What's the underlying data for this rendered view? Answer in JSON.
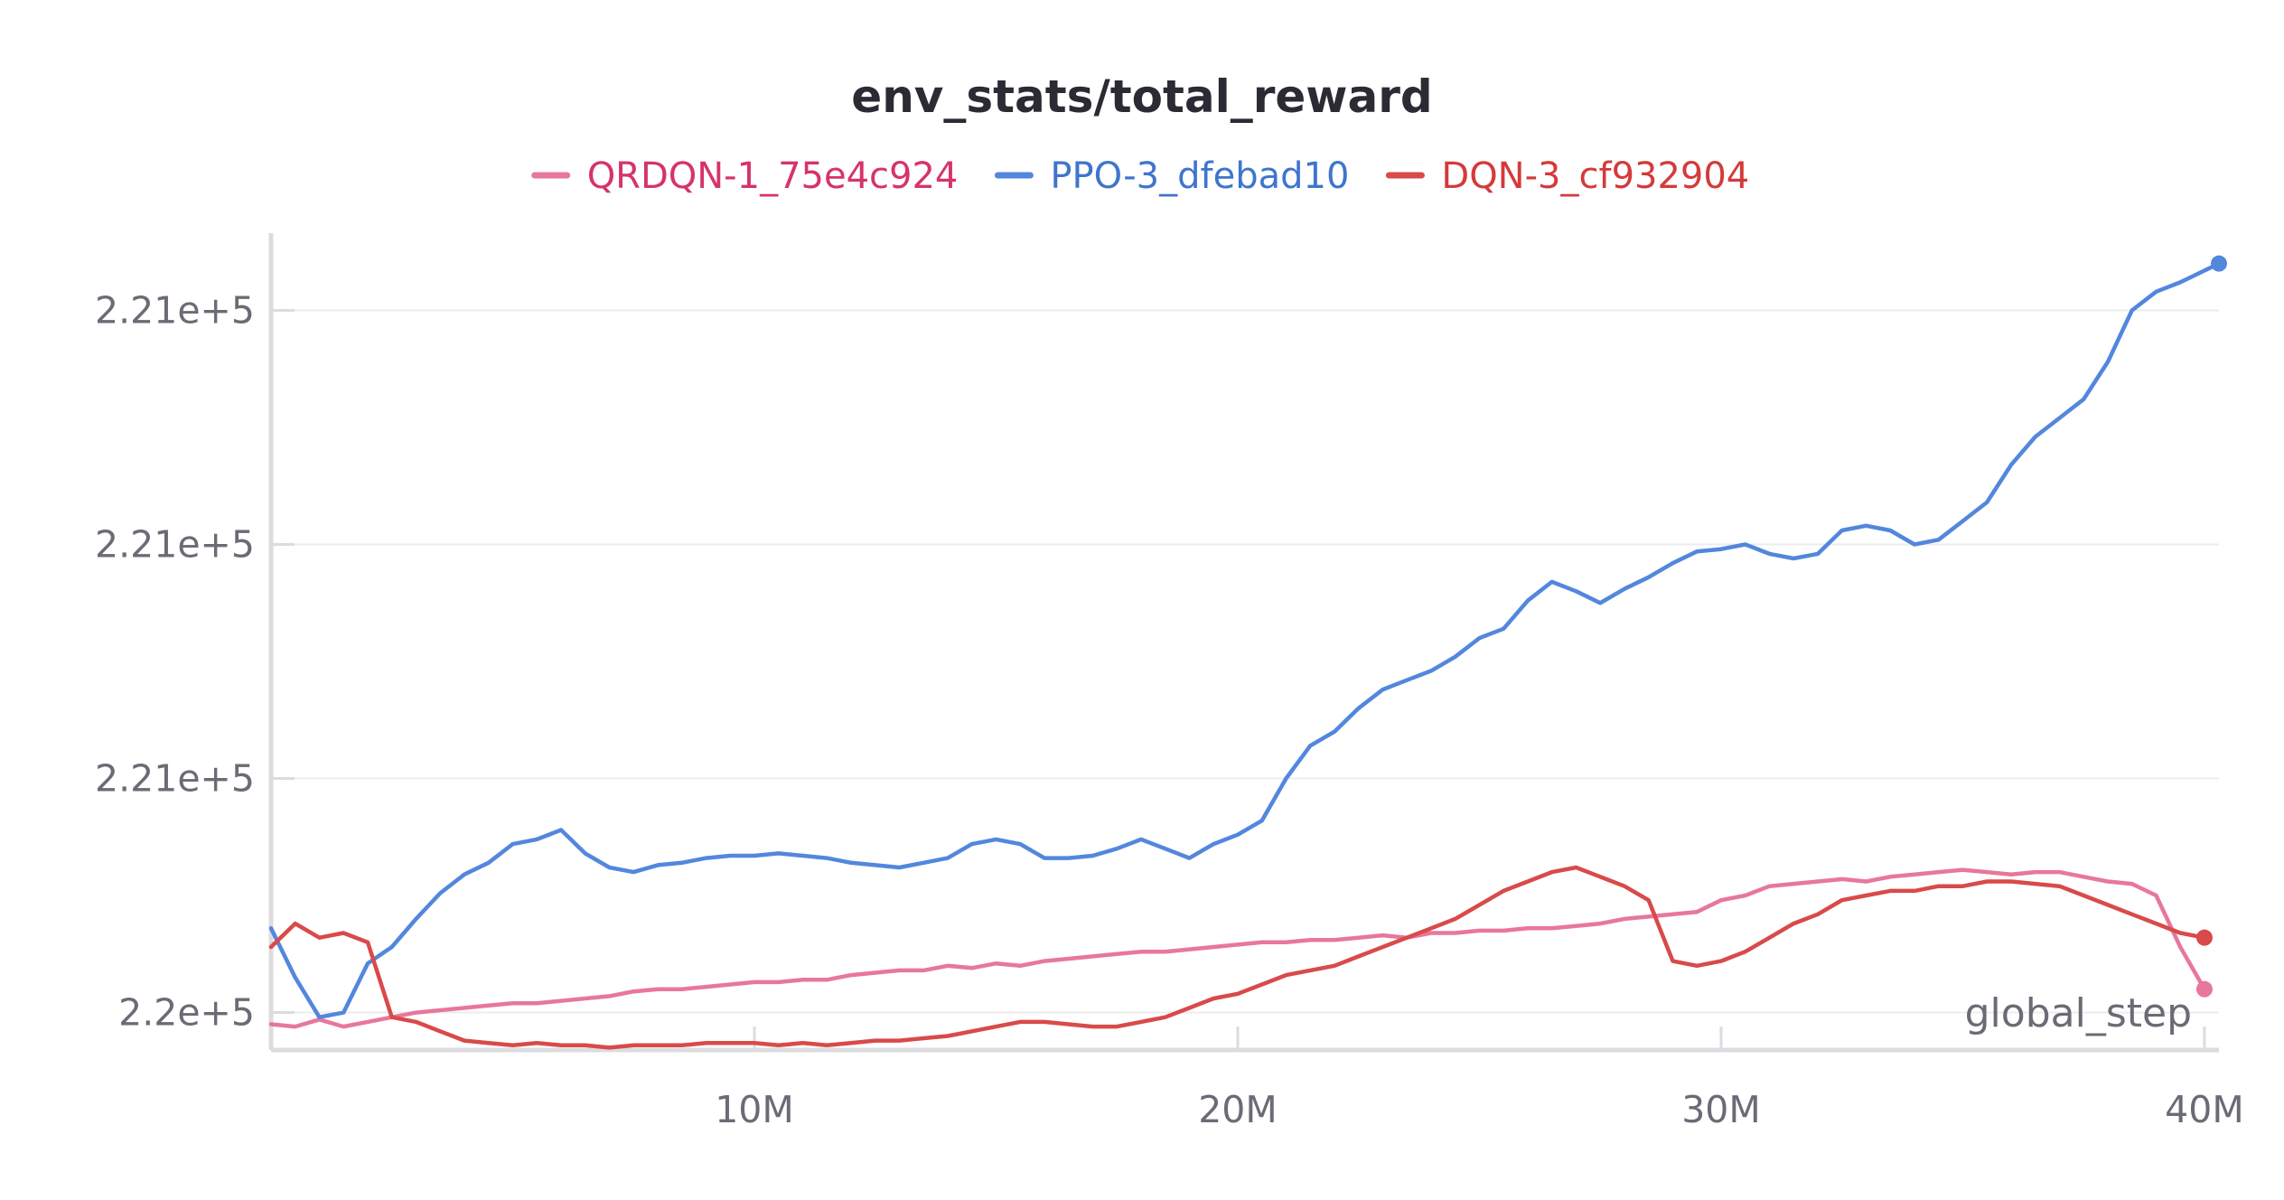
{
  "chart_data": {
    "type": "line",
    "title": "env_stats/total_reward",
    "xlabel": "global_step",
    "ylabel": "",
    "x_ticks": [
      {
        "value": 10000000,
        "label": "10M"
      },
      {
        "value": 20000000,
        "label": "20M"
      },
      {
        "value": 30000000,
        "label": "30M"
      },
      {
        "value": 40000000,
        "label": "40M"
      }
    ],
    "y_ticks": [
      {
        "value": 220600,
        "label": "2.2e+5"
      },
      {
        "value": 220700,
        "label": "2.21e+5"
      },
      {
        "value": 220800,
        "label": "2.21e+5"
      },
      {
        "value": 220900,
        "label": "2.21e+5"
      }
    ],
    "xlim": [
      0,
      40300000
    ],
    "ylim": [
      220584,
      220933
    ],
    "grid": true,
    "legend_position": "top-center",
    "series": [
      {
        "name": "QRDQN-1_75e4c924",
        "color": "#e8779c",
        "text_color": "#d6336c",
        "x": [
          0,
          500000,
          1000000,
          1500000,
          2000000,
          2500000,
          3000000,
          3500000,
          4000000,
          4500000,
          5000000,
          5500000,
          6000000,
          6500000,
          7000000,
          7500000,
          8000000,
          8500000,
          9000000,
          9500000,
          10000000,
          10500000,
          11000000,
          11500000,
          12000000,
          12500000,
          13000000,
          13500000,
          14000000,
          14500000,
          15000000,
          15500000,
          16000000,
          16500000,
          17000000,
          17500000,
          18000000,
          18500000,
          19000000,
          19500000,
          20000000,
          20500000,
          21000000,
          21500000,
          22000000,
          22500000,
          23000000,
          23500000,
          24000000,
          24500000,
          25000000,
          25500000,
          26000000,
          26500000,
          27000000,
          27500000,
          28000000,
          28500000,
          29000000,
          29500000,
          30000000,
          30500000,
          31000000,
          31500000,
          32000000,
          32500000,
          33000000,
          33500000,
          34000000,
          34500000,
          35000000,
          35500000,
          36000000,
          36500000,
          37000000,
          37500000,
          38000000,
          38500000,
          39000000,
          39500000,
          40000000
        ],
        "values": [
          220595,
          220594,
          220597,
          220594,
          220596,
          220598,
          220600,
          220601,
          220602,
          220603,
          220604,
          220604,
          220605,
          220606,
          220607,
          220609,
          220610,
          220610,
          220611,
          220612,
          220613,
          220613,
          220614,
          220614,
          220616,
          220617,
          220618,
          220618,
          220620,
          220619,
          220621,
          220620,
          220622,
          220623,
          220624,
          220625,
          220626,
          220626,
          220627,
          220628,
          220629,
          220630,
          220630,
          220631,
          220631,
          220632,
          220633,
          220632,
          220634,
          220634,
          220635,
          220635,
          220636,
          220636,
          220637,
          220638,
          220640,
          220641,
          220642,
          220643,
          220648,
          220650,
          220654,
          220655,
          220656,
          220657,
          220656,
          220658,
          220659,
          220660,
          220661,
          220660,
          220659,
          220660,
          220660,
          220658,
          220656,
          220655,
          220650,
          220628,
          220610
        ]
      },
      {
        "name": "PPO-3_dfebad10",
        "color": "#5387dd",
        "text_color": "#3f75cc",
        "x": [
          0,
          500000,
          1000000,
          1500000,
          2000000,
          2500000,
          3000000,
          3500000,
          4000000,
          4500000,
          5000000,
          5500000,
          6000000,
          6500000,
          7000000,
          7500000,
          8000000,
          8500000,
          9000000,
          9500000,
          10000000,
          10500000,
          11000000,
          11500000,
          12000000,
          12500000,
          13000000,
          13500000,
          14000000,
          14500000,
          15000000,
          15500000,
          16000000,
          16500000,
          17000000,
          17500000,
          18000000,
          18500000,
          19000000,
          19500000,
          20000000,
          20500000,
          21000000,
          21500000,
          22000000,
          22500000,
          23000000,
          23500000,
          24000000,
          24500000,
          25000000,
          25500000,
          26000000,
          26500000,
          27000000,
          27500000,
          28000000,
          28500000,
          29000000,
          29500000,
          30000000,
          30500000,
          31000000,
          31500000,
          32000000,
          32500000,
          33000000,
          33500000,
          34000000,
          34500000,
          35000000,
          35500000,
          36000000,
          36500000,
          37000000,
          37500000,
          38000000,
          38500000,
          39000000,
          39500000,
          40300000
        ],
        "values": [
          220636,
          220615,
          220598,
          220600,
          220621,
          220628,
          220640,
          220651,
          220659,
          220664,
          220672,
          220674,
          220678,
          220668,
          220662,
          220660,
          220663,
          220664,
          220666,
          220667,
          220667,
          220668,
          220667,
          220666,
          220664,
          220663,
          220662,
          220664,
          220666,
          220672,
          220674,
          220672,
          220666,
          220666,
          220667,
          220670,
          220674,
          220670,
          220666,
          220672,
          220676,
          220682,
          220700,
          220714,
          220720,
          220730,
          220738,
          220742,
          220746,
          220752,
          220760,
          220764,
          220776,
          220784,
          220780,
          220775,
          220781,
          220786,
          220792,
          220797,
          220798,
          220800,
          220796,
          220794,
          220796,
          220806,
          220808,
          220806,
          220800,
          220802,
          220810,
          220818,
          220834,
          220846,
          220854,
          220862,
          220878,
          220900,
          220908,
          220912,
          220920
        ]
      },
      {
        "name": "DQN-3_cf932904",
        "color": "#d94a4a",
        "text_color": "#d43a3a",
        "x": [
          0,
          500000,
          1000000,
          1500000,
          2000000,
          2500000,
          3000000,
          3500000,
          4000000,
          4500000,
          5000000,
          5500000,
          6000000,
          6500000,
          7000000,
          7500000,
          8000000,
          8500000,
          9000000,
          9500000,
          10000000,
          10500000,
          11000000,
          11500000,
          12000000,
          12500000,
          13000000,
          13500000,
          14000000,
          14500000,
          15000000,
          15500000,
          16000000,
          16500000,
          17000000,
          17500000,
          18000000,
          18500000,
          19000000,
          19500000,
          20000000,
          20500000,
          21000000,
          21500000,
          22000000,
          22500000,
          23000000,
          23500000,
          24000000,
          24500000,
          25000000,
          25500000,
          26000000,
          26500000,
          27000000,
          27500000,
          28000000,
          28500000,
          29000000,
          29500000,
          30000000,
          30500000,
          31000000,
          31500000,
          32000000,
          32500000,
          33000000,
          33500000,
          34000000,
          34500000,
          35000000,
          35500000,
          36000000,
          36500000,
          37000000,
          37500000,
          38000000,
          38500000,
          39000000,
          39500000,
          40000000
        ],
        "values": [
          220628,
          220638,
          220632,
          220634,
          220630,
          220598,
          220596,
          220592,
          220588,
          220587,
          220586,
          220587,
          220586,
          220586,
          220585,
          220586,
          220586,
          220586,
          220587,
          220587,
          220587,
          220586,
          220587,
          220586,
          220587,
          220588,
          220588,
          220589,
          220590,
          220592,
          220594,
          220596,
          220596,
          220595,
          220594,
          220594,
          220596,
          220598,
          220602,
          220606,
          220608,
          220612,
          220616,
          220618,
          220620,
          220624,
          220628,
          220632,
          220636,
          220640,
          220646,
          220652,
          220656,
          220660,
          220662,
          220658,
          220654,
          220648,
          220622,
          220620,
          220622,
          220626,
          220632,
          220638,
          220642,
          220648,
          220650,
          220652,
          220652,
          220654,
          220654,
          220656,
          220656,
          220655,
          220654,
          220650,
          220646,
          220642,
          220638,
          220634,
          220632
        ]
      }
    ]
  }
}
